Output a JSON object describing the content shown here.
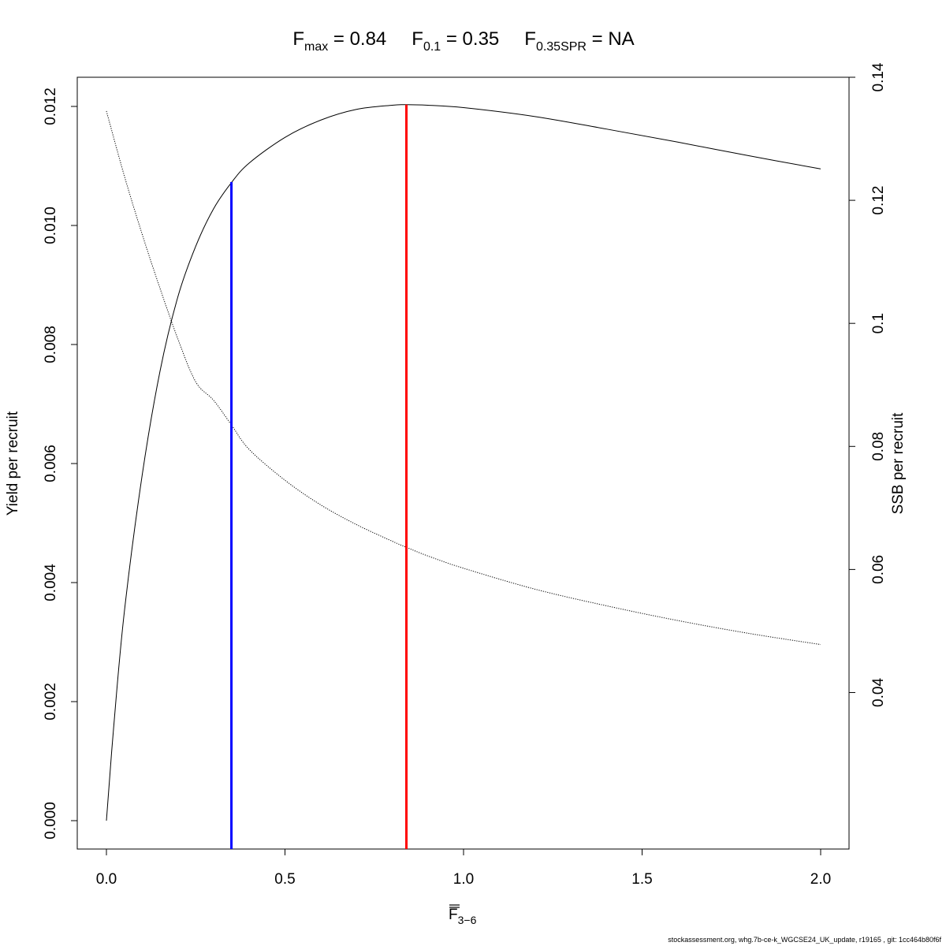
{
  "title": {
    "fmax": {
      "main": "F",
      "sub": "max",
      "rest": " = 0.84"
    },
    "f01": {
      "main": "F",
      "sub": "0.1",
      "rest": " = 0.35"
    },
    "fspr": {
      "main": "F",
      "sub": "0.35SPR",
      "rest": " = NA"
    }
  },
  "footer": "stockassessment.org, whg.7b-ce-k_WGCSE24_UK_update, r19165 , git: 1cc464b80f6f",
  "chart_data": {
    "type": "line",
    "xlabel": {
      "main": "F",
      "sub": "3−6",
      "overbar": true
    },
    "ylabel_left": "Yield per recruit",
    "ylabel_right": "SSB per recruit",
    "xlim": [
      0,
      2
    ],
    "ylim_left": [
      0,
      0.012
    ],
    "ylim_right": [
      0.012,
      0.14
    ],
    "x_ticks": [
      "0.0",
      "0.5",
      "1.0",
      "1.5",
      "2.0"
    ],
    "y_ticks_left": [
      "0.000",
      "0.002",
      "0.004",
      "0.006",
      "0.008",
      "0.010",
      "0.012"
    ],
    "y_ticks_right": [
      "0.04",
      "0.06",
      "0.08",
      "0.1",
      "0.12",
      "0.14"
    ],
    "series": [
      {
        "axis": "left",
        "style": "solid",
        "color": "#000000",
        "x": [
          0,
          0.02,
          0.05,
          0.1,
          0.15,
          0.2,
          0.25,
          0.3,
          0.35,
          0.4,
          0.5,
          0.6,
          0.7,
          0.8,
          0.84,
          0.9,
          1.0,
          1.2,
          1.4,
          1.6,
          1.8,
          2.0
        ],
        "y": [
          0.0,
          0.00155,
          0.0035,
          0.0058,
          0.00755,
          0.0088,
          0.00965,
          0.01028,
          0.01072,
          0.01105,
          0.01148,
          0.01177,
          0.01195,
          0.01202,
          0.01203,
          0.01202,
          0.01198,
          0.01183,
          0.01162,
          0.0114,
          0.01117,
          0.01095
        ]
      },
      {
        "axis": "right",
        "style": "dotted",
        "color": "#000000",
        "x": [
          0,
          0.05,
          0.1,
          0.15,
          0.2,
          0.25,
          0.3,
          0.35,
          0.4,
          0.5,
          0.6,
          0.7,
          0.8,
          0.84,
          0.9,
          1.0,
          1.2,
          1.4,
          1.6,
          1.8,
          2.0
        ],
        "y": [
          0.1345,
          0.124,
          0.1145,
          0.1057,
          0.0975,
          0.0905,
          0.0875,
          0.0835,
          0.0795,
          0.0745,
          0.0705,
          0.0673,
          0.0646,
          0.0636,
          0.0622,
          0.0602,
          0.0568,
          0.0541,
          0.0517,
          0.0496,
          0.0478
        ]
      }
    ],
    "reference_lines": [
      {
        "name": "F0.1",
        "x": 0.35,
        "y_top": 0.01073,
        "color": "#0000ff"
      },
      {
        "name": "Fmax",
        "x": 0.84,
        "y_top": 0.01203,
        "color": "#ff0000"
      }
    ]
  }
}
